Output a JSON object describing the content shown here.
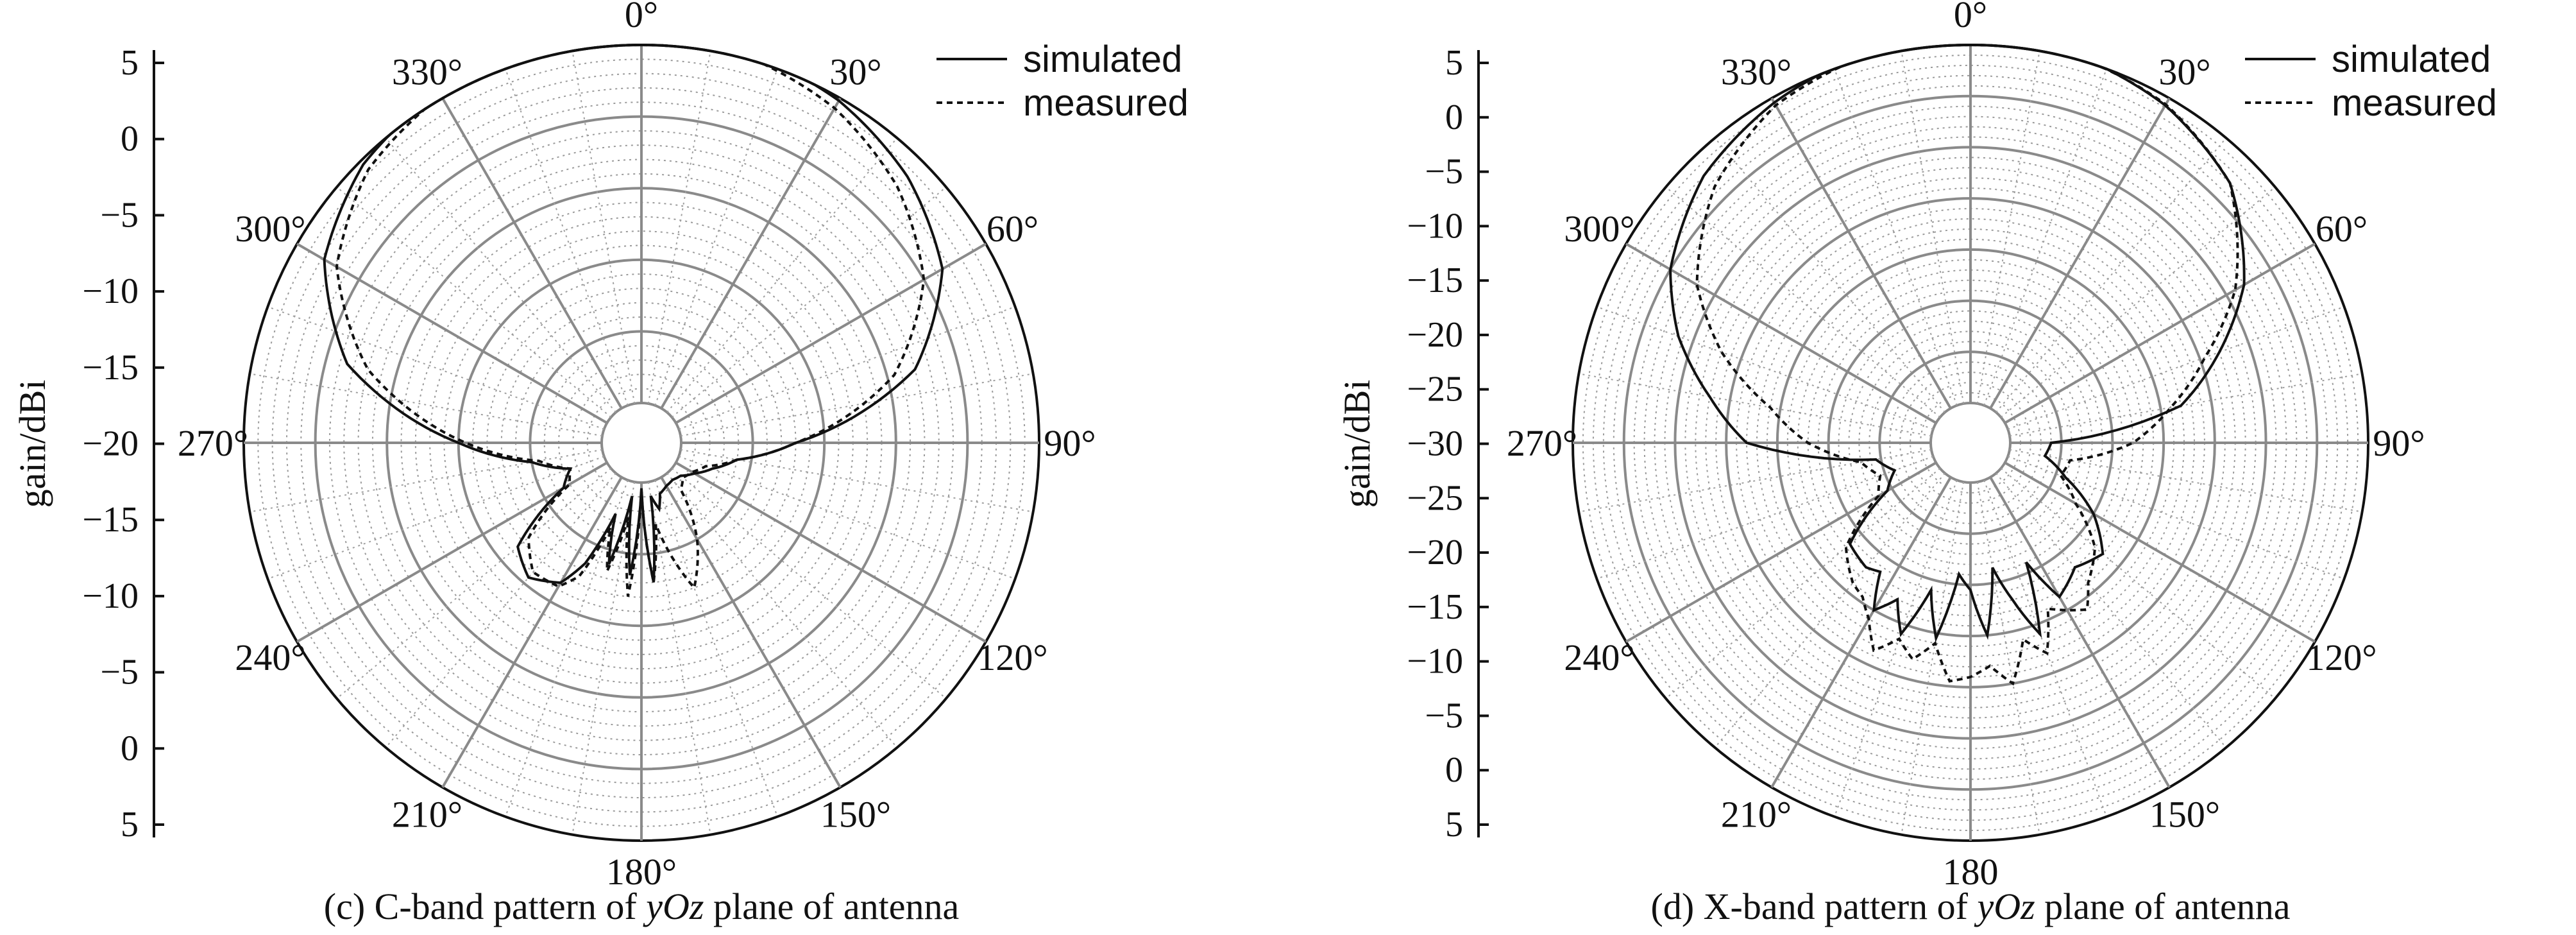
{
  "chart_data": [
    {
      "type": "polar",
      "caption_prefix": "(c) C-band pattern of ",
      "caption_italic": "yOz",
      "caption_suffix": " plane of antenna",
      "ylabel": "gain/dBi",
      "r_ticks": [
        "5",
        "0",
        "−5",
        "−10",
        "−15",
        "−20",
        "−15",
        "−10",
        "−5",
        "0",
        "5"
      ],
      "r_tick_values": [
        5,
        0,
        -5,
        -10,
        -15,
        -20,
        -15,
        -10,
        -5,
        0,
        5
      ],
      "r_range_dBi": [
        -20,
        5
      ],
      "angle_labels": [
        "0°",
        "30°",
        "60°",
        "90°",
        "120°",
        "150°",
        "180°",
        "210°",
        "240°",
        "270°",
        "300°",
        "330°"
      ],
      "legend": [
        "simulated",
        "measured"
      ],
      "series": [
        {
          "name": "simulated",
          "style": "solid",
          "angles_deg": [
            0,
            15,
            30,
            45,
            60,
            75,
            90,
            100,
            110,
            120,
            130,
            140,
            150,
            160,
            165,
            170,
            175,
            180,
            185,
            190,
            195,
            200,
            205,
            210,
            220,
            230,
            240,
            250,
            260,
            270,
            285,
            300,
            315,
            330,
            345
          ],
          "gain_dBi": [
            5.8,
            5.5,
            4.8,
            3.5,
            1.5,
            -3,
            -12,
            -16,
            -17.5,
            -18.5,
            -19.2,
            -19.4,
            -19.3,
            -19,
            -18,
            -19,
            -13,
            -19.6,
            -13.5,
            -19,
            -14,
            -17.5,
            -13.5,
            -11.5,
            -10.5,
            -11.5,
            -16.5,
            -17.5,
            -15,
            -10,
            -1.5,
            2.8,
            4.7,
            5.5,
            5.8
          ]
        },
        {
          "name": "measured",
          "style": "dashed",
          "angles_deg": [
            0,
            15,
            30,
            45,
            60,
            75,
            90,
            100,
            110,
            120,
            130,
            140,
            150,
            160,
            170,
            175,
            180,
            185,
            190,
            195,
            200,
            205,
            210,
            220,
            230,
            240,
            250,
            260,
            270,
            285,
            300,
            315,
            330,
            345
          ],
          "gain_dBi": [
            5.5,
            5.2,
            4.2,
            2.5,
            0,
            -4.5,
            -12,
            -16,
            -18,
            -18.7,
            -19,
            -18.5,
            -15,
            -12,
            -17,
            -13,
            -19.5,
            -12,
            -17.5,
            -13.5,
            -16.5,
            -12.5,
            -11.2,
            -11,
            -12.5,
            -17,
            -17.5,
            -15.5,
            -10.5,
            -3,
            1.8,
            4.2,
            5.2,
            5.5
          ]
        }
      ]
    },
    {
      "type": "polar",
      "caption_prefix": "(d) X-band pattern of ",
      "caption_italic": "yOz",
      "caption_suffix": " plane of antenna",
      "ylabel": "gain/dBi",
      "r_ticks": [
        "5",
        "0",
        "−5",
        "−10",
        "−15",
        "−20",
        "−25",
        "−30",
        "−25",
        "−20",
        "−15",
        "−10",
        "−5",
        "0",
        "5"
      ],
      "r_tick_values": [
        5,
        0,
        -5,
        -10,
        -15,
        -20,
        -25,
        -30,
        -25,
        -20,
        -15,
        -10,
        -5,
        0,
        5
      ],
      "r_range_dBi": [
        -30,
        5
      ],
      "angle_labels": [
        "0°",
        "30°",
        "60°",
        "90°",
        "120°",
        "150°",
        "180",
        "210°",
        "240°",
        "270°",
        "300°",
        "330°"
      ],
      "legend": [
        "simulated",
        "measured"
      ],
      "series": [
        {
          "name": "simulated",
          "style": "solid",
          "angles_deg": [
            0,
            15,
            30,
            45,
            60,
            70,
            80,
            90,
            100,
            110,
            120,
            130,
            140,
            150,
            155,
            160,
            165,
            170,
            175,
            180,
            185,
            190,
            195,
            200,
            205,
            210,
            215,
            220,
            230,
            240,
            250,
            260,
            270,
            280,
            290,
            300,
            315,
            330,
            345
          ],
          "gain_dBi": [
            5.8,
            5.4,
            4.2,
            2,
            -3,
            -8,
            -13,
            -26,
            -26.5,
            -24,
            -20,
            -17,
            -18,
            -16.5,
            -21,
            -14,
            -18,
            -21.5,
            -15,
            -19.5,
            -21,
            -14.5,
            -19,
            -14,
            -17,
            -15,
            -18.5,
            -18,
            -18.5,
            -24.5,
            -26,
            -24.5,
            -12,
            -8,
            -3.5,
            0,
            3,
            4.5,
            5.5
          ]
        },
        {
          "name": "measured",
          "style": "dashed",
          "angles_deg": [
            0,
            15,
            30,
            45,
            60,
            70,
            80,
            90,
            100,
            110,
            120,
            130,
            140,
            145,
            150,
            155,
            160,
            165,
            170,
            175,
            180,
            185,
            190,
            195,
            200,
            205,
            210,
            215,
            220,
            230,
            240,
            250,
            260,
            270,
            280,
            290,
            300,
            315,
            330,
            345
          ],
          "gain_dBi": [
            5.5,
            5.3,
            4.3,
            2,
            -4,
            -9.5,
            -14,
            -18,
            -24,
            -24.5,
            -22,
            -18,
            -16,
            -14,
            -15,
            -16,
            -12,
            -14,
            -10,
            -12,
            -11,
            -10.5,
            -14,
            -12,
            -13.5,
            -11.5,
            -14,
            -15.5,
            -16,
            -18,
            -23.5,
            -24.5,
            -23,
            -18,
            -14,
            -8,
            -3,
            1.5,
            4.2,
            5.3
          ]
        }
      ]
    }
  ]
}
